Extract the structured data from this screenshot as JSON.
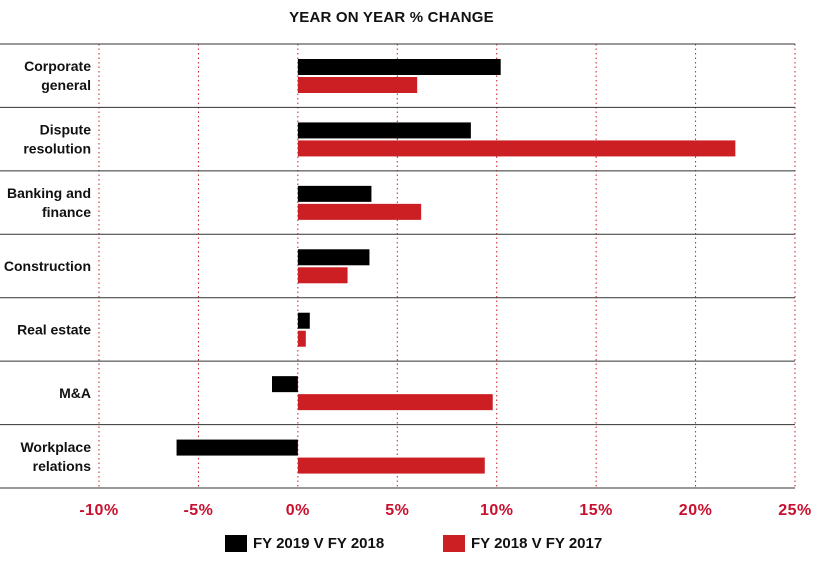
{
  "chart_data": {
    "type": "bar",
    "orientation": "horizontal",
    "title": "YEAR ON YEAR % CHANGE",
    "categories": [
      [
        "Corporate",
        "general"
      ],
      [
        "Dispute",
        "resolution"
      ],
      [
        "Banking and",
        "finance"
      ],
      [
        "Construction"
      ],
      [
        "Real estate"
      ],
      [
        "M&A"
      ],
      [
        "Workplace",
        "relations"
      ]
    ],
    "series": [
      {
        "name": "FY 2019 V FY 2018",
        "color": "#000000",
        "values": [
          10.2,
          8.7,
          3.7,
          3.6,
          0.6,
          -1.3,
          -6.1
        ]
      },
      {
        "name": "FY 2018 V FY 2017",
        "color": "#cc1f24",
        "values": [
          6.0,
          22.0,
          6.2,
          2.5,
          0.4,
          9.8,
          9.4
        ]
      }
    ],
    "xlim": [
      -10,
      25
    ],
    "xticks": [
      -10,
      -5,
      0,
      5,
      10,
      15,
      20,
      25
    ],
    "xtick_labels": [
      "-10%",
      "-5%",
      "0%",
      "5%",
      "10%",
      "15%",
      "20%",
      "25%"
    ],
    "gridlines": "dotted vertical, red",
    "legend_position": "bottom"
  }
}
